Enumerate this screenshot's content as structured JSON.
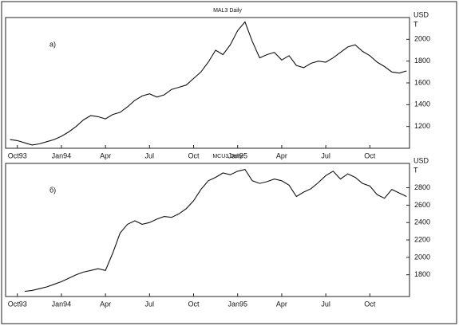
{
  "chart_data": [
    {
      "type": "line",
      "title": "MAL3 Daily",
      "label": "а)",
      "ylabel": [
        "USD",
        "T"
      ],
      "xlim": [
        -0.8,
        26.7
      ],
      "ylim": [
        1000,
        2200
      ],
      "xticks": [
        {
          "value": 0,
          "label": "Oct93"
        },
        {
          "value": 3,
          "label": "Jan94"
        },
        {
          "value": 6,
          "label": "Apr"
        },
        {
          "value": 9,
          "label": "Jul"
        },
        {
          "value": 12,
          "label": "Oct"
        },
        {
          "value": 15,
          "label": "Jan95"
        },
        {
          "value": 18,
          "label": "Apr"
        },
        {
          "value": 21,
          "label": "Jul"
        },
        {
          "value": 24,
          "label": "Oct"
        }
      ],
      "yticks": [
        1200,
        1400,
        1600,
        1800,
        2000
      ],
      "series": [
        {
          "color": "#111111",
          "x": [
            -0.5,
            0,
            0.5,
            1,
            1.5,
            2,
            2.5,
            3,
            3.5,
            4,
            4.5,
            5,
            5.5,
            6,
            6.5,
            7,
            7.5,
            8,
            8.5,
            9,
            9.5,
            10,
            10.5,
            11,
            11.5,
            12,
            12.5,
            13,
            13.5,
            14,
            14.5,
            15,
            15.5,
            16,
            16.5,
            17,
            17.5,
            18,
            18.5,
            19,
            19.5,
            20,
            20.5,
            21,
            21.5,
            22,
            22.5,
            23,
            23.5,
            24,
            24.5,
            25,
            25.5,
            26,
            26.5
          ],
          "values": [
            1080,
            1070,
            1050,
            1030,
            1040,
            1060,
            1080,
            1110,
            1150,
            1200,
            1260,
            1300,
            1290,
            1270,
            1310,
            1330,
            1380,
            1440,
            1480,
            1500,
            1470,
            1490,
            1540,
            1560,
            1580,
            1640,
            1700,
            1790,
            1900,
            1860,
            1950,
            2080,
            2160,
            1980,
            1830,
            1860,
            1880,
            1810,
            1850,
            1760,
            1740,
            1780,
            1800,
            1790,
            1830,
            1880,
            1930,
            1950,
            1890,
            1850,
            1790,
            1750,
            1700,
            1690,
            1710
          ]
        }
      ]
    },
    {
      "type": "line",
      "title": "MCU3 Daily",
      "label": "б)",
      "ylabel": [
        "USD",
        "T"
      ],
      "xlim": [
        -0.8,
        26.7
      ],
      "ylim": [
        1550,
        3080
      ],
      "xticks": [
        {
          "value": 0,
          "label": "Oct93"
        },
        {
          "value": 3,
          "label": "Jan94"
        },
        {
          "value": 6,
          "label": "Apr"
        },
        {
          "value": 9,
          "label": "Jul"
        },
        {
          "value": 12,
          "label": "Oct"
        },
        {
          "value": 15,
          "label": "Jan95"
        },
        {
          "value": 18,
          "label": "Apr"
        },
        {
          "value": 21,
          "label": "Jul"
        },
        {
          "value": 24,
          "label": "Oct"
        }
      ],
      "yticks": [
        1800,
        2000,
        2200,
        2400,
        2600,
        2800
      ],
      "series": [
        {
          "color": "#111111",
          "x": [
            0.5,
            1,
            1.5,
            2,
            2.5,
            3,
            3.5,
            4,
            4.5,
            5,
            5.5,
            6,
            6.5,
            7,
            7.5,
            8,
            8.5,
            9,
            9.5,
            10,
            10.5,
            11,
            11.5,
            12,
            12.5,
            13,
            13.5,
            14,
            14.5,
            15,
            15.5,
            16,
            16.5,
            17,
            17.5,
            18,
            18.5,
            19,
            19.5,
            20,
            20.5,
            21,
            21.5,
            22,
            22.5,
            23,
            23.5,
            24,
            24.5,
            25,
            25.5,
            26,
            26.5
          ],
          "values": [
            1610,
            1620,
            1640,
            1660,
            1690,
            1720,
            1760,
            1800,
            1830,
            1850,
            1870,
            1850,
            2050,
            2280,
            2380,
            2420,
            2380,
            2400,
            2440,
            2470,
            2460,
            2500,
            2560,
            2650,
            2780,
            2880,
            2920,
            2970,
            2950,
            2990,
            3010,
            2880,
            2850,
            2870,
            2900,
            2880,
            2830,
            2700,
            2750,
            2790,
            2860,
            2940,
            2990,
            2900,
            2960,
            2920,
            2850,
            2820,
            2720,
            2680,
            2780,
            2740,
            2700
          ]
        }
      ]
    }
  ]
}
